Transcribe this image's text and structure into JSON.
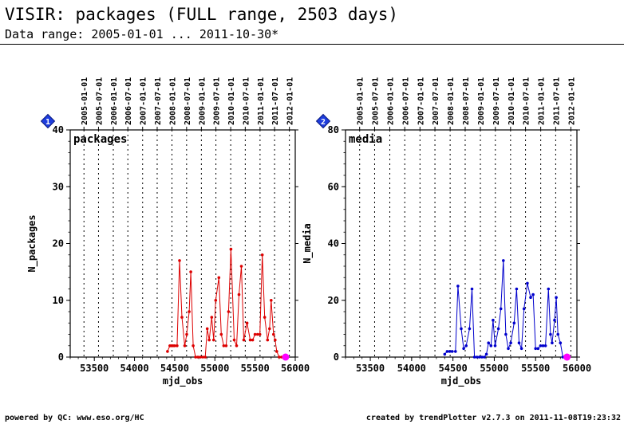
{
  "page": {
    "title": "VISIR: packages (FULL range, 2503 days)",
    "subtitle": "Data range: 2005-01-01 ... 2011-10-30*",
    "footer_left": "powered by QC: www.eso.org/HC",
    "footer_right": "created by trendPlotter v2.7.3 on 2011-11-08T19:23:32"
  },
  "chart_data": [
    {
      "type": "line",
      "badge": "1",
      "panel_label": "packages",
      "xlabel": "mjd_obs",
      "ylabel": "N_packages",
      "xlim": [
        53200,
        56000
      ],
      "ylim": [
        0,
        40
      ],
      "x_ticks": [
        53500,
        54000,
        54500,
        55000,
        55500,
        56000
      ],
      "y_ticks": [
        0,
        10,
        20,
        30,
        40
      ],
      "date_ticks": [
        "2005-01-01",
        "2005-07-01",
        "2006-01-01",
        "2006-07-01",
        "2007-01-01",
        "2007-07-01",
        "2008-01-01",
        "2008-07-01",
        "2009-01-01",
        "2009-07-01",
        "2010-01-01",
        "2010-07-01",
        "2011-01-01",
        "2011-07-01",
        "2012-01-01"
      ],
      "date_tick_mjd": [
        53371,
        53552,
        53736,
        53917,
        54101,
        54282,
        54466,
        54648,
        54832,
        55013,
        55197,
        55378,
        55562,
        55743,
        55927
      ],
      "grid": true,
      "color": "#dd0000",
      "last_point_color": "#ff00ff",
      "series": [
        {
          "x": [
            54410,
            54440,
            54460,
            54480,
            54500,
            54530,
            54560,
            54590,
            54625,
            54650,
            54680,
            54700,
            54730,
            54760,
            54790,
            54820,
            54850,
            54880,
            54905,
            54930,
            54960,
            54985,
            55010,
            55050,
            55080,
            55110,
            55140,
            55170,
            55200,
            55240,
            55270,
            55300,
            55330,
            55360,
            55400,
            55440,
            55470,
            55500,
            55530,
            55560,
            55590,
            55620,
            55655,
            55680,
            55700,
            55730,
            55750,
            55770,
            55800,
            55830,
            55855,
            55880
          ],
          "y": [
            1,
            2,
            2,
            2,
            2,
            2,
            17,
            7,
            2,
            4,
            8,
            15,
            2,
            0,
            0,
            0,
            0,
            0,
            5,
            3,
            7,
            3,
            10,
            14,
            4,
            2,
            2,
            8,
            19,
            3,
            2,
            11,
            16,
            3,
            6,
            3,
            3,
            4,
            4,
            4,
            18,
            7,
            3,
            5,
            10,
            4,
            3,
            1,
            0,
            0,
            0,
            0
          ]
        }
      ]
    },
    {
      "type": "line",
      "badge": "2",
      "panel_label": "media",
      "xlabel": "mjd_obs",
      "ylabel": "N_media",
      "xlim": [
        53200,
        56000
      ],
      "ylim": [
        0,
        80
      ],
      "x_ticks": [
        53500,
        54000,
        54500,
        55000,
        55500,
        56000
      ],
      "y_ticks": [
        0,
        20,
        40,
        60,
        80
      ],
      "date_ticks": [
        "2005-01-01",
        "2005-07-01",
        "2006-01-01",
        "2006-07-01",
        "2007-01-01",
        "2007-07-01",
        "2008-01-01",
        "2008-07-01",
        "2009-01-01",
        "2009-07-01",
        "2010-01-01",
        "2010-07-01",
        "2011-01-01",
        "2011-07-01",
        "2012-01-01"
      ],
      "date_tick_mjd": [
        53371,
        53552,
        53736,
        53917,
        54101,
        54282,
        54466,
        54648,
        54832,
        55013,
        55197,
        55378,
        55562,
        55743,
        55927
      ],
      "grid": true,
      "color": "#0000cc",
      "last_point_color": "#ff00ff",
      "series": [
        {
          "x": [
            54400,
            54430,
            54460,
            54490,
            54530,
            54560,
            54600,
            54630,
            54660,
            54700,
            54730,
            54760,
            54790,
            54820,
            54850,
            54880,
            54905,
            54930,
            54960,
            54985,
            55010,
            55050,
            55080,
            55110,
            55140,
            55170,
            55200,
            55240,
            55270,
            55300,
            55330,
            55360,
            55400,
            55440,
            55470,
            55500,
            55530,
            55560,
            55590,
            55620,
            55655,
            55680,
            55700,
            55730,
            55750,
            55770,
            55800,
            55830,
            55855,
            55880
          ],
          "y": [
            1,
            2,
            2,
            2,
            2,
            25,
            10,
            3,
            4,
            10,
            24,
            0,
            0,
            0,
            0,
            0,
            1,
            5,
            4,
            13,
            4,
            10,
            17,
            34,
            8,
            3,
            5,
            12,
            24,
            5,
            3,
            17,
            26,
            21,
            22,
            3,
            3,
            4,
            4,
            4,
            24,
            8,
            5,
            13,
            21,
            8,
            5,
            0,
            0,
            0
          ]
        }
      ]
    }
  ]
}
